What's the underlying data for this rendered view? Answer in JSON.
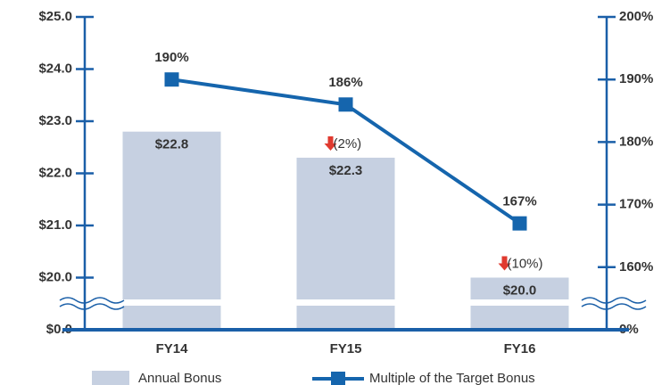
{
  "chart_data": {
    "type": "bar_line",
    "categories": [
      "FY14",
      "FY15",
      "FY16"
    ],
    "series": [
      {
        "name": "Annual Bonus",
        "type": "bar",
        "color": "#c6d0e1",
        "values": [
          22.8,
          22.3,
          20.0
        ],
        "value_labels": [
          "$22.8",
          "$22.3",
          "$20.0"
        ]
      },
      {
        "name": "Multiple of the Target Bonus",
        "type": "line",
        "axis": "y2",
        "color": "#1565ad",
        "values": [
          190,
          186,
          167
        ],
        "value_labels": [
          "190%",
          "186%",
          "167%"
        ]
      }
    ],
    "change_labels": [
      null,
      "(2%)",
      "(10%)"
    ],
    "ylim": [
      19,
      25
    ],
    "yticks": [
      {
        "value": 0,
        "label": "$0.0"
      },
      {
        "value": 20,
        "label": "$20.0"
      },
      {
        "value": 21,
        "label": "$21.0"
      },
      {
        "value": 22,
        "label": "$22.0"
      },
      {
        "value": 23,
        "label": "$23.0"
      },
      {
        "value": 24,
        "label": "$24.0"
      },
      {
        "value": 25,
        "label": "$25.0"
      }
    ],
    "y2lim": [
      150,
      200
    ],
    "y2ticks": [
      {
        "value": 0,
        "label": "0%"
      },
      {
        "value": 160,
        "label": "160%"
      },
      {
        "value": 170,
        "label": "170%"
      },
      {
        "value": 180,
        "label": "180%"
      },
      {
        "value": 190,
        "label": "190%"
      },
      {
        "value": 200,
        "label": "200%"
      }
    ],
    "axis_break": true
  }
}
